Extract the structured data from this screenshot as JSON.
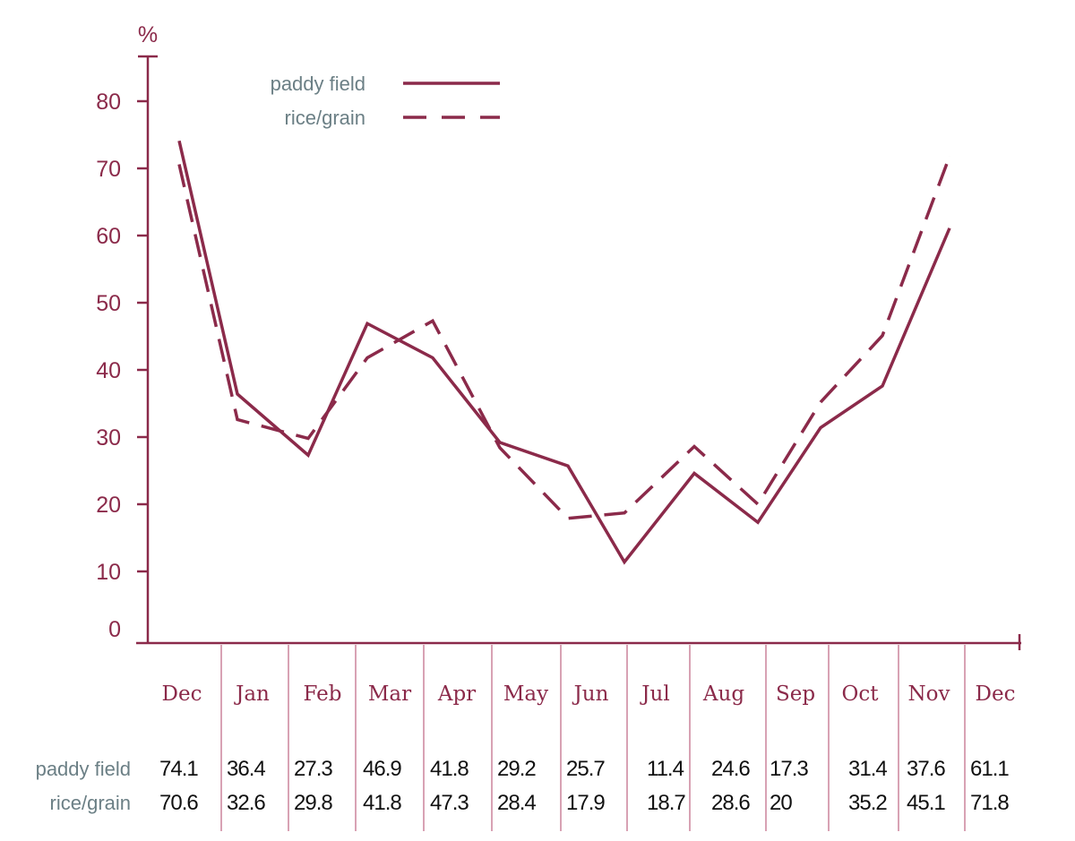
{
  "chart_data": {
    "type": "line",
    "title": "",
    "ylabel": "%",
    "xlabel": "",
    "ylim": [
      0,
      80
    ],
    "yticks": [
      "0",
      "10",
      "20",
      "30",
      "40",
      "50",
      "60",
      "70",
      "80"
    ],
    "categories": [
      "Dec",
      "Jan",
      "Feb",
      "Mar",
      "Apr",
      "May",
      "Jun",
      "Jul",
      "Aug",
      "Sep",
      "Oct",
      "Nov",
      "Dec"
    ],
    "series": [
      {
        "name": "paddy field",
        "style": "solid",
        "values": [
          74.1,
          36.4,
          27.3,
          46.9,
          41.8,
          29.2,
          25.7,
          11.4,
          24.6,
          17.3,
          31.4,
          37.6,
          61.1
        ],
        "labels": [
          "74.1",
          "36.4",
          "27.3",
          "46.9",
          "41.8",
          "29.2",
          "25.7",
          "11.4",
          "24.6",
          "17.3",
          "31.4",
          "37.6",
          "61.1"
        ]
      },
      {
        "name": "rice/grain",
        "style": "dashed",
        "values": [
          70.6,
          32.6,
          29.8,
          41.8,
          47.3,
          28.4,
          17.9,
          18.7,
          28.6,
          20,
          35.2,
          45.1,
          71.8
        ],
        "labels": [
          "70.6",
          "32.6",
          "29.8",
          "41.8",
          "47.3",
          "28.4",
          "17.9",
          "18.7",
          "28.6",
          "20",
          "35.2",
          "45.1",
          "71.8"
        ]
      }
    ],
    "legend": "top-center",
    "grid": false,
    "color": "#8b2a4a"
  }
}
